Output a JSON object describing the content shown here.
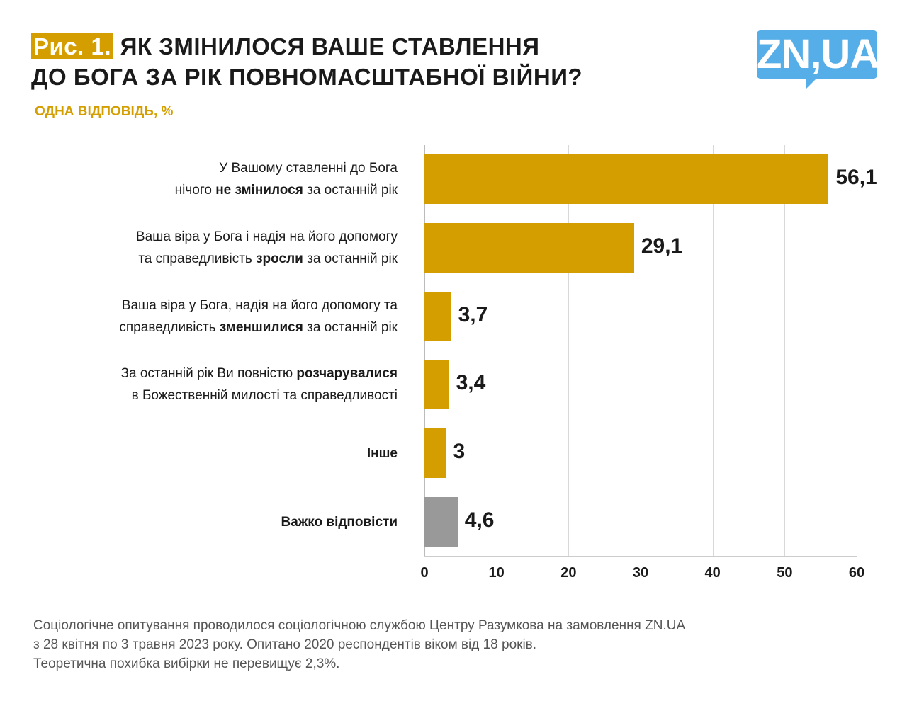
{
  "header": {
    "fig_label": "Рис. 1.",
    "title_line1": "ЯК ЗМІНИЛОСЯ ВАШЕ СТАВЛЕННЯ",
    "title_line2": "ДО БОГА ЗА РІК ПОВНОМАСШТАБНОЇ ВІЙНИ?",
    "subtitle": "ОДНА ВІДПОВІДЬ, %"
  },
  "logo": {
    "text": "ZN,UA"
  },
  "chart_data": {
    "type": "bar",
    "orientation": "horizontal",
    "xlim": [
      0,
      60
    ],
    "grid": true,
    "ticks": [
      "0",
      "10",
      "20",
      "30",
      "40",
      "50",
      "60"
    ],
    "categories": [
      [
        [
          {
            "t": "У Вашому ставленні до Бога",
            "b": false
          }
        ],
        [
          {
            "t": "нічого ",
            "b": false
          },
          {
            "t": "не змінилося",
            "b": true
          },
          {
            "t": " за останній рік",
            "b": false
          }
        ]
      ],
      [
        [
          {
            "t": "Ваша віра у Бога і надія на його допомогу",
            "b": false
          }
        ],
        [
          {
            "t": "та справедливість ",
            "b": false
          },
          {
            "t": "зросли",
            "b": true
          },
          {
            "t": " за останній рік",
            "b": false
          }
        ]
      ],
      [
        [
          {
            "t": "Ваша віра у Бога, надія на його допомогу та",
            "b": false
          }
        ],
        [
          {
            "t": "справедливість ",
            "b": false
          },
          {
            "t": "зменшилися",
            "b": true
          },
          {
            "t": " за останній рік",
            "b": false
          }
        ]
      ],
      [
        [
          {
            "t": "За останній рік Ви повністю ",
            "b": false
          },
          {
            "t": "розчарувалися",
            "b": true
          }
        ],
        [
          {
            "t": "в Божественній милості та справедливості",
            "b": false
          }
        ]
      ],
      [
        [
          {
            "t": "Інше",
            "b": true
          }
        ]
      ],
      [
        [
          {
            "t": "Важко відповісти",
            "b": true
          }
        ]
      ]
    ],
    "values": [
      56.1,
      29.1,
      3.7,
      3.4,
      3,
      4.6
    ],
    "value_labels": [
      "56,1",
      "29,1",
      "3,7",
      "3,4",
      "3",
      "4,6"
    ],
    "colors": [
      "#d49e00",
      "#d49e00",
      "#d49e00",
      "#d49e00",
      "#d49e00",
      "#999999"
    ]
  },
  "footnote": {
    "line1": "Соціологічне опитування проводилося соціологічною службою Центру Разумкова на замовлення ZN.UA",
    "line2": "з 28 квітня по 3 травня 2023 року. Опитано 2020 респондентів віком від 18 років.",
    "line3": "Теоретична похибка вибірки не перевищує 2,3%."
  }
}
